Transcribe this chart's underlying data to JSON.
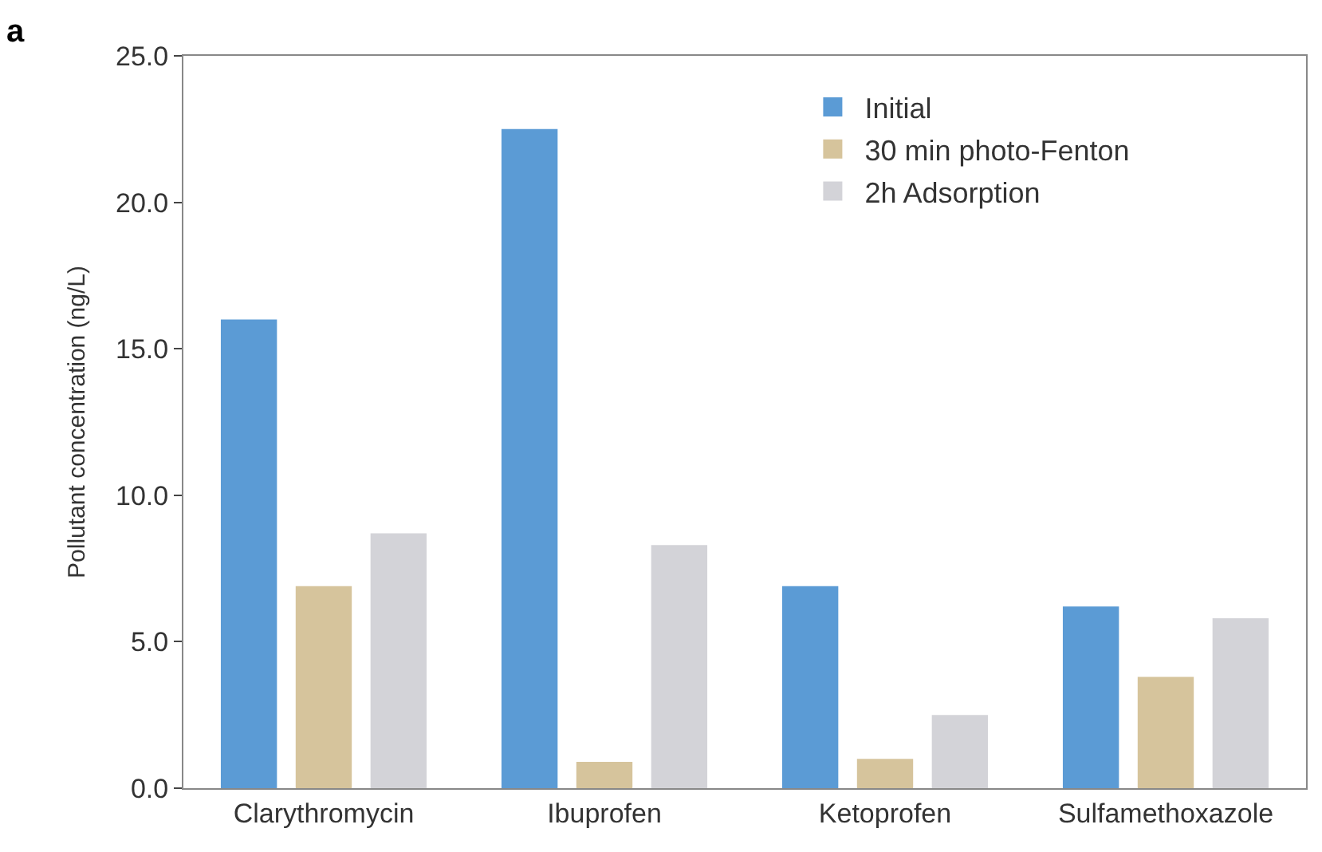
{
  "chart_data": {
    "type": "bar",
    "ylabel": "Pollutant concentration (ng/L)",
    "categories": [
      "Clarythromycin",
      "Ibuprofen",
      "Ketoprofen",
      "Sulfamethoxazole"
    ],
    "series": [
      {
        "name": "Initial",
        "color": "#5b9bd5",
        "values": [
          16.0,
          22.5,
          6.9,
          6.2
        ]
      },
      {
        "name": "30 min photo-Fenton",
        "color": "#d6c49c",
        "values": [
          6.9,
          0.9,
          1.0,
          3.8
        ]
      },
      {
        "name": "2h Adsorption",
        "color": "#d3d3d8",
        "values": [
          8.7,
          8.3,
          2.5,
          5.8
        ]
      }
    ],
    "ylim": [
      0,
      25
    ],
    "yticks": [
      {
        "value": 0,
        "label": "0.0"
      },
      {
        "value": 5,
        "label": "5.0"
      },
      {
        "value": 10,
        "label": "10.0"
      },
      {
        "value": 15,
        "label": "15.0"
      },
      {
        "value": 20,
        "label": "20.0"
      },
      {
        "value": 25,
        "label": "25.0"
      }
    ],
    "legend": "top right",
    "annotations": [
      "a"
    ]
  }
}
